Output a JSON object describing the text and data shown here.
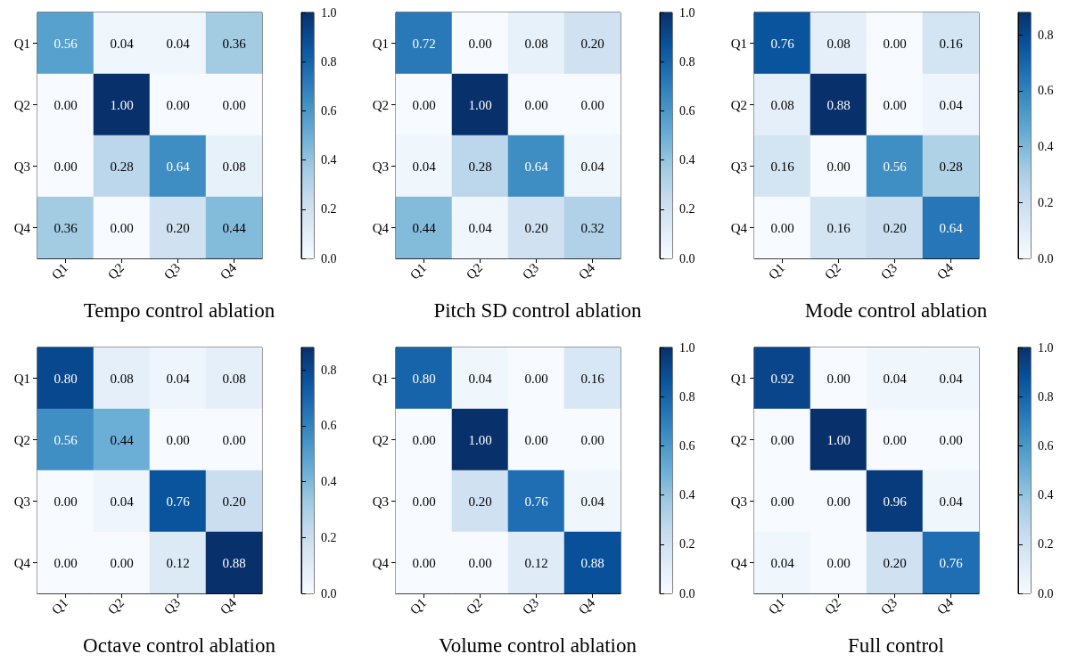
{
  "chart_data": [
    {
      "type": "heatmap",
      "title": "Tempo control ablation",
      "categories": [
        "Q1",
        "Q2",
        "Q3",
        "Q4"
      ],
      "y_categories": [
        "Q1",
        "Q2",
        "Q3",
        "Q4"
      ],
      "cells": [
        [
          0.56,
          0.04,
          0.04,
          0.36
        ],
        [
          0.0,
          1.0,
          0.0,
          0.0
        ],
        [
          0.0,
          0.28,
          0.64,
          0.08
        ],
        [
          0.36,
          0.0,
          0.2,
          0.44
        ]
      ],
      "cell_labels": [
        [
          "0.56",
          "0.04",
          "0.04",
          "0.36"
        ],
        [
          "0.00",
          "1.00",
          "0.00",
          "0.00"
        ],
        [
          "0.00",
          "0.28",
          "0.64",
          "0.08"
        ],
        [
          "0.36",
          "0.00",
          "0.20",
          "0.44"
        ]
      ],
      "clim": [
        0,
        1
      ],
      "cticks": [
        {
          "value": 0,
          "label": "0.0"
        },
        {
          "value": 0.2,
          "label": "0.2"
        },
        {
          "value": 0.4,
          "label": "0.4"
        },
        {
          "value": 0.6,
          "label": "0.6"
        },
        {
          "value": 0.8,
          "label": "0.8"
        },
        {
          "value": 1,
          "label": "1.0"
        }
      ]
    },
    {
      "type": "heatmap",
      "title": "Pitch SD control ablation",
      "categories": [
        "Q1",
        "Q2",
        "Q3",
        "Q4"
      ],
      "y_categories": [
        "Q1",
        "Q2",
        "Q3",
        "Q4"
      ],
      "cells": [
        [
          0.72,
          0.0,
          0.08,
          0.2
        ],
        [
          0.0,
          1.0,
          0.0,
          0.0
        ],
        [
          0.04,
          0.28,
          0.64,
          0.04
        ],
        [
          0.44,
          0.04,
          0.2,
          0.32
        ]
      ],
      "cell_labels": [
        [
          "0.72",
          "0.00",
          "0.08",
          "0.20"
        ],
        [
          "0.00",
          "1.00",
          "0.00",
          "0.00"
        ],
        [
          "0.04",
          "0.28",
          "0.64",
          "0.04"
        ],
        [
          "0.44",
          "0.04",
          "0.20",
          "0.32"
        ]
      ],
      "clim": [
        0,
        1
      ],
      "cticks": [
        {
          "value": 0,
          "label": "0.0"
        },
        {
          "value": 0.2,
          "label": "0.2"
        },
        {
          "value": 0.4,
          "label": "0.4"
        },
        {
          "value": 0.6,
          "label": "0.6"
        },
        {
          "value": 0.8,
          "label": "0.8"
        },
        {
          "value": 1,
          "label": "1.0"
        }
      ]
    },
    {
      "type": "heatmap",
      "title": "Mode control ablation",
      "categories": [
        "Q1",
        "Q2",
        "Q3",
        "Q4"
      ],
      "y_categories": [
        "Q1",
        "Q2",
        "Q3",
        "Q4"
      ],
      "cells": [
        [
          0.76,
          0.08,
          0.0,
          0.16
        ],
        [
          0.08,
          0.88,
          0.0,
          0.04
        ],
        [
          0.16,
          0.0,
          0.56,
          0.28
        ],
        [
          0.0,
          0.16,
          0.2,
          0.64
        ]
      ],
      "cell_labels": [
        [
          "0.76",
          "0.08",
          "0.00",
          "0.16"
        ],
        [
          "0.08",
          "0.88",
          "0.00",
          "0.04"
        ],
        [
          "0.16",
          "0.00",
          "0.56",
          "0.28"
        ],
        [
          "0.00",
          "0.16",
          "0.20",
          "0.64"
        ]
      ],
      "clim": [
        0,
        0.88
      ],
      "cticks": [
        {
          "value": 0,
          "label": "0.0"
        },
        {
          "value": 0.2,
          "label": "0.2"
        },
        {
          "value": 0.4,
          "label": "0.4"
        },
        {
          "value": 0.6,
          "label": "0.6"
        },
        {
          "value": 0.8,
          "label": "0.8"
        }
      ]
    },
    {
      "type": "heatmap",
      "title": "Octave control ablation",
      "categories": [
        "Q1",
        "Q2",
        "Q3",
        "Q4"
      ],
      "y_categories": [
        "Q1",
        "Q2",
        "Q3",
        "Q4"
      ],
      "cells": [
        [
          0.8,
          0.08,
          0.04,
          0.08
        ],
        [
          0.56,
          0.44,
          0.0,
          0.0
        ],
        [
          0.0,
          0.04,
          0.76,
          0.2
        ],
        [
          0.0,
          0.0,
          0.12,
          0.88
        ]
      ],
      "cell_labels": [
        [
          "0.80",
          "0.08",
          "0.04",
          "0.08"
        ],
        [
          "0.56",
          "0.44",
          "0.00",
          "0.00"
        ],
        [
          "0.00",
          "0.04",
          "0.76",
          "0.20"
        ],
        [
          "0.00",
          "0.00",
          "0.12",
          "0.88"
        ]
      ],
      "clim": [
        0,
        0.88
      ],
      "cticks": [
        {
          "value": 0,
          "label": "0.0"
        },
        {
          "value": 0.2,
          "label": "0.2"
        },
        {
          "value": 0.4,
          "label": "0.4"
        },
        {
          "value": 0.6,
          "label": "0.6"
        },
        {
          "value": 0.8,
          "label": "0.8"
        }
      ]
    },
    {
      "type": "heatmap",
      "title": "Volume control ablation",
      "categories": [
        "Q1",
        "Q2",
        "Q3",
        "Q4"
      ],
      "y_categories": [
        "Q1",
        "Q2",
        "Q3",
        "Q4"
      ],
      "cells": [
        [
          0.8,
          0.04,
          0.0,
          0.16
        ],
        [
          0.0,
          1.0,
          0.0,
          0.0
        ],
        [
          0.0,
          0.2,
          0.76,
          0.04
        ],
        [
          0.0,
          0.0,
          0.12,
          0.88
        ]
      ],
      "cell_labels": [
        [
          "0.80",
          "0.04",
          "0.00",
          "0.16"
        ],
        [
          "0.00",
          "1.00",
          "0.00",
          "0.00"
        ],
        [
          "0.00",
          "0.20",
          "0.76",
          "0.04"
        ],
        [
          "0.00",
          "0.00",
          "0.12",
          "0.88"
        ]
      ],
      "clim": [
        0,
        1
      ],
      "cticks": [
        {
          "value": 0,
          "label": "0.0"
        },
        {
          "value": 0.2,
          "label": "0.2"
        },
        {
          "value": 0.4,
          "label": "0.4"
        },
        {
          "value": 0.6,
          "label": "0.6"
        },
        {
          "value": 0.8,
          "label": "0.8"
        },
        {
          "value": 1,
          "label": "1.0"
        }
      ]
    },
    {
      "type": "heatmap",
      "title": "Full control",
      "categories": [
        "Q1",
        "Q2",
        "Q3",
        "Q4"
      ],
      "y_categories": [
        "Q1",
        "Q2",
        "Q3",
        "Q4"
      ],
      "cells": [
        [
          0.92,
          0.0,
          0.04,
          0.04
        ],
        [
          0.0,
          1.0,
          0.0,
          0.0
        ],
        [
          0.0,
          0.0,
          0.96,
          0.04
        ],
        [
          0.04,
          0.0,
          0.2,
          0.76
        ]
      ],
      "cell_labels": [
        [
          "0.92",
          "0.00",
          "0.04",
          "0.04"
        ],
        [
          "0.00",
          "1.00",
          "0.00",
          "0.00"
        ],
        [
          "0.00",
          "0.00",
          "0.96",
          "0.04"
        ],
        [
          "0.04",
          "0.00",
          "0.20",
          "0.76"
        ]
      ],
      "clim": [
        0,
        1
      ],
      "cticks": [
        {
          "value": 0,
          "label": "0.0"
        },
        {
          "value": 0.2,
          "label": "0.2"
        },
        {
          "value": 0.4,
          "label": "0.4"
        },
        {
          "value": 0.6,
          "label": "0.6"
        },
        {
          "value": 0.8,
          "label": "0.8"
        },
        {
          "value": 1,
          "label": "1.0"
        }
      ]
    }
  ]
}
